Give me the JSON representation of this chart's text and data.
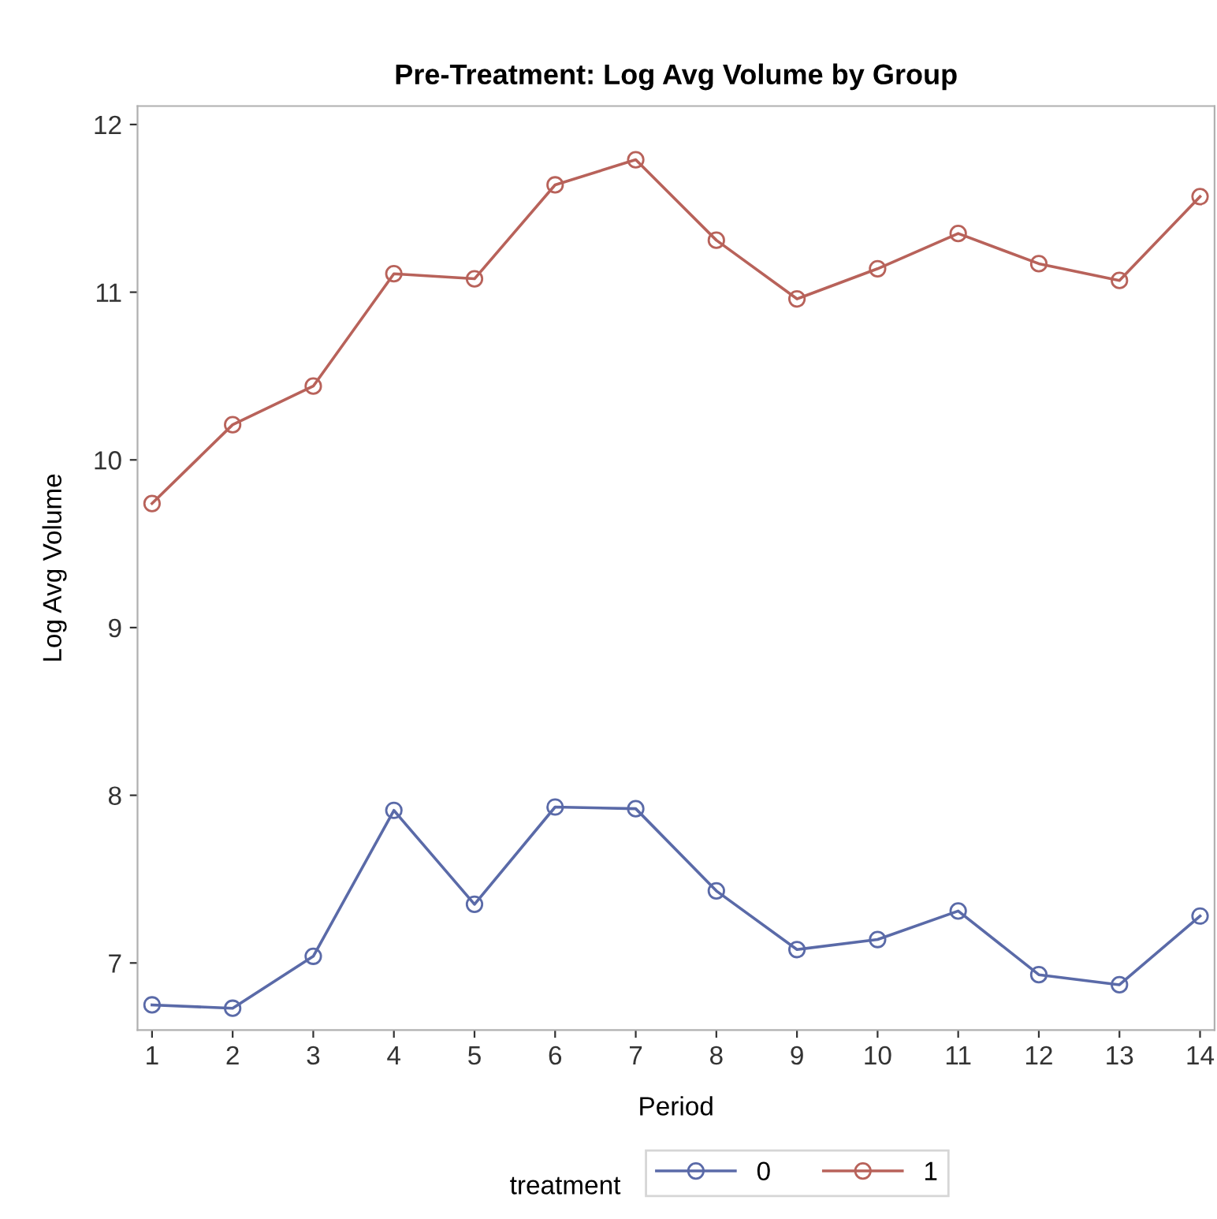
{
  "chart_data": {
    "type": "line",
    "title": "Pre-Treatment: Log Avg Volume by Group",
    "xlabel": "Period",
    "ylabel": "Log Avg Volume",
    "legend_title": "treatment",
    "x": [
      1,
      2,
      3,
      4,
      5,
      6,
      7,
      8,
      9,
      10,
      11,
      12,
      13,
      14
    ],
    "series": [
      {
        "name": "0",
        "color": "#5a6aa8",
        "values": [
          6.75,
          6.73,
          7.04,
          7.91,
          7.35,
          7.93,
          7.92,
          7.43,
          7.08,
          7.14,
          7.31,
          6.93,
          6.87,
          7.28
        ]
      },
      {
        "name": "1",
        "color": "#b8625a",
        "values": [
          9.74,
          10.21,
          10.44,
          11.11,
          11.08,
          11.64,
          11.79,
          11.31,
          10.96,
          11.14,
          11.35,
          11.17,
          11.07,
          11.57
        ]
      }
    ],
    "xlim": [
      0.82,
      14.18
    ],
    "xticks": [
      1,
      2,
      3,
      4,
      5,
      6,
      7,
      8,
      9,
      10,
      11,
      12,
      13,
      14
    ],
    "ylim": [
      6.6,
      12.11
    ],
    "yticks": [
      7,
      8,
      9,
      10,
      11,
      12
    ],
    "marker": "circle",
    "line_style": "solid",
    "legend": "bottom",
    "grid": false
  }
}
